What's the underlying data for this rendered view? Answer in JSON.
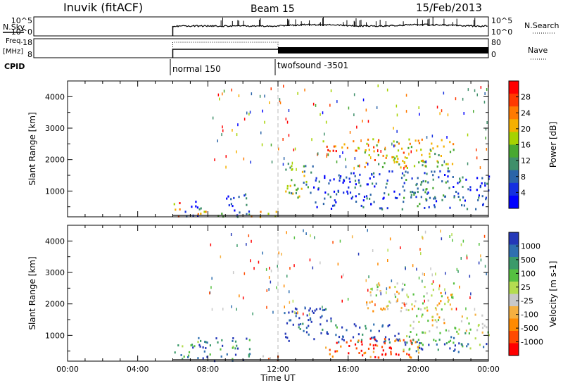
{
  "header": {
    "station": "Inuvik (fitACF)",
    "beam": "Beam 15",
    "date": "15/Feb/2013"
  },
  "top_strips": {
    "nsky_label": "N.Sky",
    "nsky_ticks": [
      "10^5",
      "10^0"
    ],
    "nsearch_label": "N.Search",
    "nsearch_ticks": [
      "10^5",
      "10^0"
    ],
    "freq_label_line1": "Freq.",
    "freq_label_line2": "[MHz]",
    "freq_ticks": [
      "18",
      "8"
    ],
    "nave_label": "Nave",
    "nave_ticks": [
      "80",
      "0"
    ],
    "cpid_label": "CPID",
    "cpid_modes": [
      {
        "name": "normal 150",
        "start_hour": 6
      },
      {
        "name": "twofsound -3501",
        "start_hour": 12
      }
    ]
  },
  "chart_data": [
    {
      "type": "heatmap",
      "title": "",
      "xlabel": "",
      "ylabel": "Slant Range [km]",
      "x_range": [
        0,
        24
      ],
      "y_range": [
        180,
        4500
      ],
      "y_ticks": [
        1000,
        2000,
        3000,
        4000
      ],
      "x_ticks": [
        0,
        4,
        8,
        12,
        16,
        20,
        24
      ],
      "colorbar_label": "Power [dB]",
      "colorbar_ticks": [
        "28",
        "24",
        "20",
        "16",
        "12",
        "8",
        "4"
      ],
      "colorbar_colors": [
        "#ff0000",
        "#ff3a00",
        "#ff7a00",
        "#f5b000",
        "#a6d200",
        "#48a830",
        "#3f8f6a",
        "#2b64a8",
        "#1530e0",
        "#0000ff"
      ],
      "regions": [
        {
          "t0": 6.0,
          "t1": 6.6,
          "r0": 200,
          "r1": 650,
          "level": 0.25
        },
        {
          "t0": 6.6,
          "t1": 7.4,
          "r0": 200,
          "r1": 750,
          "level": 0.9
        },
        {
          "t0": 7.4,
          "t1": 9.0,
          "r0": 200,
          "r1": 500,
          "level": 0.45
        },
        {
          "t0": 9.0,
          "t1": 10.4,
          "r0": 200,
          "r1": 950,
          "level": 0.8
        },
        {
          "t0": 10.4,
          "t1": 12.0,
          "r0": 200,
          "r1": 400,
          "level": 0.35
        },
        {
          "t0": 12.3,
          "t1": 14.0,
          "r0": 800,
          "r1": 1900,
          "level": 0.55
        },
        {
          "t0": 14.0,
          "t1": 18.0,
          "r0": 450,
          "r1": 1600,
          "level": 0.85
        },
        {
          "t0": 18.0,
          "t1": 22.5,
          "r0": 450,
          "r1": 1700,
          "level": 0.75
        },
        {
          "t0": 22.5,
          "t1": 24.0,
          "r0": 450,
          "r1": 1500,
          "level": 0.9
        },
        {
          "t0": 16.5,
          "t1": 22.0,
          "r0": 1750,
          "r1": 2700,
          "level": 0.4
        },
        {
          "t0": 14.5,
          "t1": 17.0,
          "r0": 2300,
          "r1": 2650,
          "level": 0.2
        }
      ]
    },
    {
      "type": "heatmap",
      "title": "",
      "xlabel": "Time UT",
      "ylabel": "Slant Range [km]",
      "x_range": [
        0,
        24
      ],
      "y_range": [
        180,
        4500
      ],
      "y_ticks": [
        1000,
        2000,
        3000,
        4000
      ],
      "x_ticks": [
        0,
        4,
        8,
        12,
        16,
        20,
        24
      ],
      "x_tick_labels": [
        "00:00",
        "04:00",
        "08:00",
        "12:00",
        "16:00",
        "20:00",
        "00:00"
      ],
      "colorbar_label": "Velocity [m s-1]",
      "colorbar_ticks": [
        "1000",
        "500",
        "100",
        "25",
        "-25",
        "-100",
        "-500",
        "-1000"
      ],
      "colorbar_colors": [
        "#2438b8",
        "#2f6fb0",
        "#3b9a6a",
        "#55c040",
        "#b4dc50",
        "#c8c8c8",
        "#f5b040",
        "#ff8a00",
        "#ff4a00",
        "#ff0000"
      ],
      "regions": [
        {
          "t0": 6.0,
          "t1": 7.4,
          "r0": 200,
          "r1": 750,
          "level": 0.3
        },
        {
          "t0": 7.4,
          "t1": 10.4,
          "r0": 200,
          "r1": 950,
          "level": 0.2
        },
        {
          "t0": 10.4,
          "t1": 12.0,
          "r0": 200,
          "r1": 400,
          "level": 0.75
        },
        {
          "t0": 12.3,
          "t1": 15.0,
          "r0": 800,
          "r1": 1900,
          "level": 0.05
        },
        {
          "t0": 15.0,
          "t1": 19.0,
          "r0": 800,
          "r1": 1400,
          "level": 0.1
        },
        {
          "t0": 14.5,
          "t1": 20.0,
          "r0": 300,
          "r1": 950,
          "level": 0.85
        },
        {
          "t0": 19.0,
          "t1": 24.0,
          "r0": 500,
          "r1": 1100,
          "level": 0.25
        },
        {
          "t0": 19.5,
          "t1": 24.0,
          "r0": 1100,
          "r1": 1700,
          "level": 0.5
        },
        {
          "t0": 17.0,
          "t1": 22.0,
          "r0": 1800,
          "r1": 2700,
          "level": 0.55
        }
      ]
    }
  ]
}
